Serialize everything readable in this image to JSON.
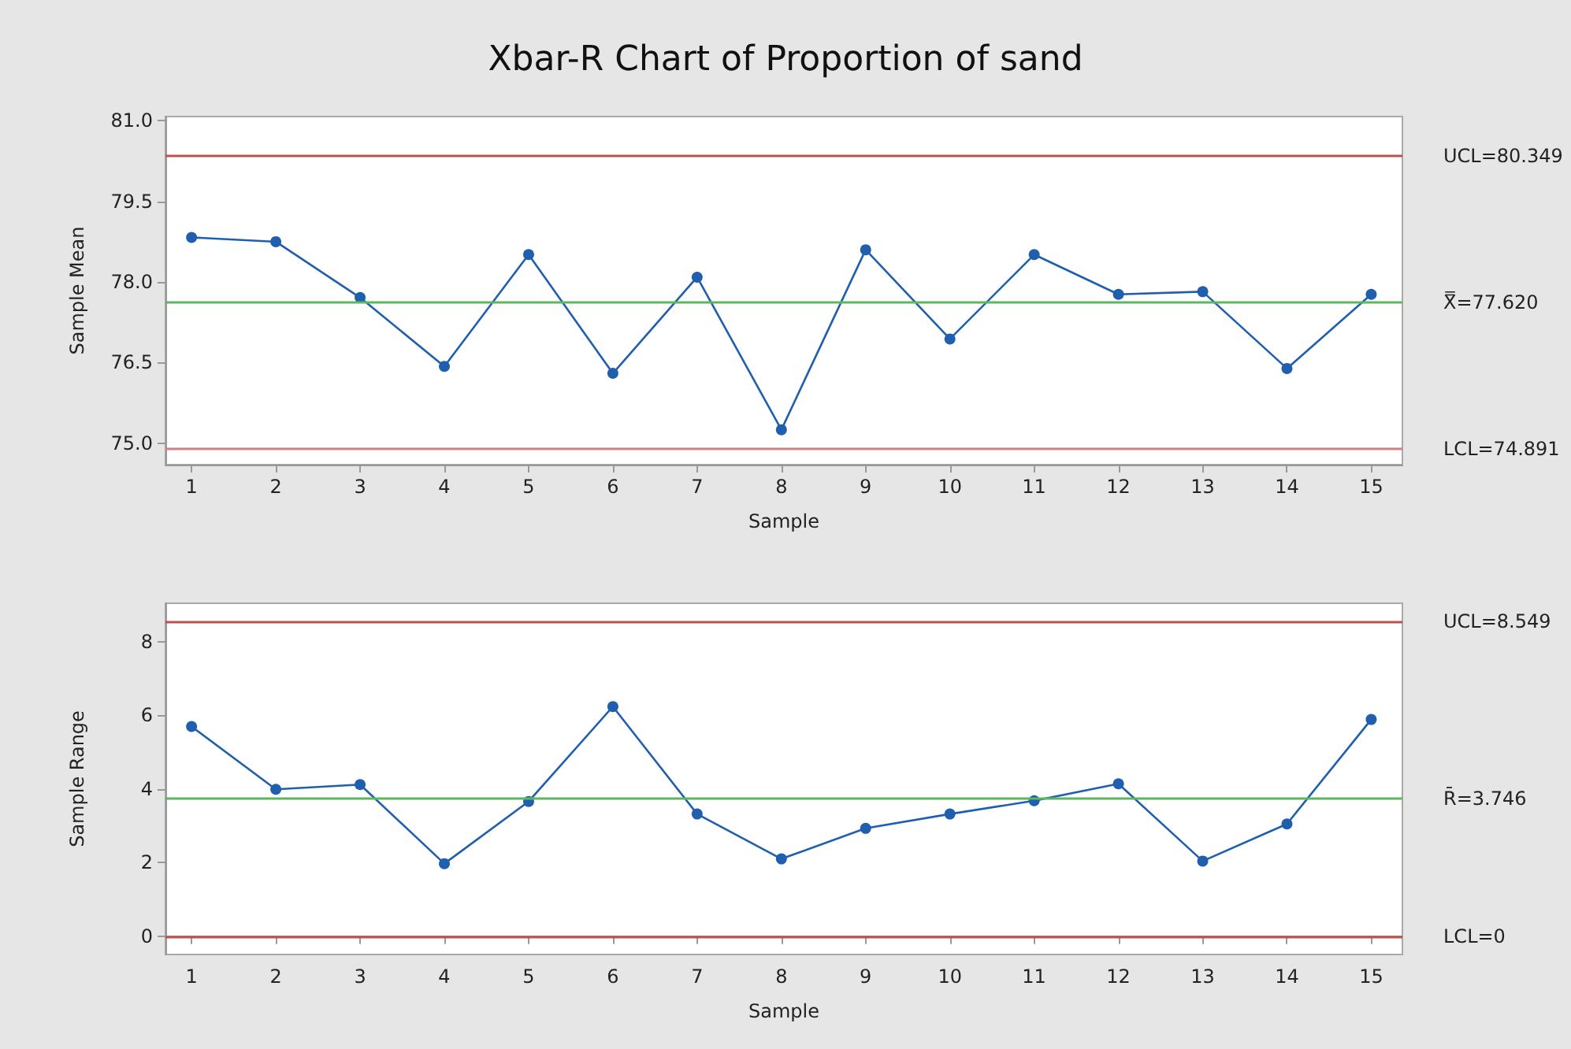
{
  "chart_data": [
    {
      "type": "line",
      "title": "Xbar-R Chart of Proportion of sand",
      "xlabel": "Sample",
      "ylabel": "Sample Mean",
      "x": [
        1,
        2,
        3,
        4,
        5,
        6,
        7,
        8,
        9,
        10,
        11,
        12,
        13,
        14,
        15
      ],
      "series": [
        {
          "color": "#1f5fad",
          "values": [
            78.83,
            78.75,
            77.71,
            76.43,
            78.51,
            76.3,
            78.09,
            75.25,
            78.6,
            76.94,
            78.51,
            77.77,
            77.82,
            76.39,
            77.77
          ]
        }
      ],
      "xlim": [
        0.69,
        15.37
      ],
      "xticks": [
        1,
        2,
        3,
        4,
        5,
        6,
        7,
        8,
        9,
        10,
        11,
        12,
        13,
        14,
        15
      ],
      "ylim": [
        74.6,
        81.08
      ],
      "yticks": [
        {
          "value": 75,
          "label": "75.0"
        },
        {
          "value": 76.5,
          "label": "76.5"
        },
        {
          "value": 78,
          "label": "78.0"
        },
        {
          "value": 79.5,
          "label": "79.5"
        },
        {
          "value": 81,
          "label": "81.0"
        }
      ],
      "ref_lines": [
        {
          "axis": "y",
          "value": 80.349,
          "label": "UCL=80.349",
          "color": "#c0504d"
        },
        {
          "axis": "y",
          "value": 77.62,
          "label": "X̿=77.620",
          "color": "#5cb85c"
        },
        {
          "axis": "y",
          "value": 74.891,
          "label": "LCL=74.891",
          "color": "#d08080"
        }
      ],
      "grid": false,
      "marker": "circle",
      "line_style": "solid"
    },
    {
      "type": "line",
      "xlabel": "Sample",
      "ylabel": "Sample Range",
      "x": [
        1,
        2,
        3,
        4,
        5,
        6,
        7,
        8,
        9,
        10,
        11,
        12,
        13,
        14,
        15
      ],
      "series": [
        {
          "color": "#1f5fad",
          "values": [
            5.7,
            3.99,
            4.12,
            1.97,
            3.66,
            6.24,
            3.32,
            2.1,
            2.93,
            3.32,
            3.68,
            4.14,
            2.04,
            3.05,
            5.89
          ]
        }
      ],
      "xlim": [
        0.69,
        15.37
      ],
      "xticks": [
        1,
        2,
        3,
        4,
        5,
        6,
        7,
        8,
        9,
        10,
        11,
        12,
        13,
        14,
        15
      ],
      "ylim": [
        -0.5,
        9.05
      ],
      "yticks": [
        0,
        2,
        4,
        6,
        8
      ],
      "ref_lines": [
        {
          "axis": "y",
          "value": 8.549,
          "label": "UCL=8.549",
          "color": "#c0504d"
        },
        {
          "axis": "y",
          "value": 3.746,
          "label": "R̄=3.746",
          "color": "#5cb85c"
        },
        {
          "axis": "y",
          "value": 0,
          "label": "LCL=0",
          "color": "#c0504d"
        }
      ],
      "grid": false,
      "marker": "circle",
      "line_style": "solid"
    }
  ]
}
